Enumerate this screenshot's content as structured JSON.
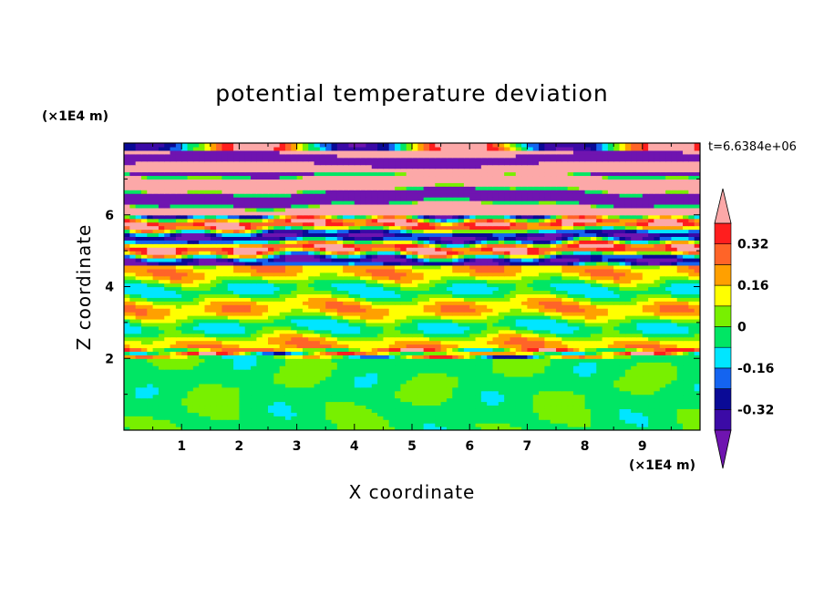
{
  "chart_data": {
    "type": "heatmap",
    "title": "potential temperature deviation",
    "xlabel": "X coordinate",
    "ylabel": "Z coordinate",
    "x_unit": "(×1E4 m)",
    "y_unit": "(×1E4 m)",
    "timestamp": "t=6.6384e+06",
    "xlim": [
      0,
      10
    ],
    "ylim": [
      0,
      8
    ],
    "xticks": [
      1,
      2,
      3,
      4,
      5,
      6,
      7,
      8,
      9
    ],
    "yticks": [
      2,
      4,
      6
    ],
    "colorbar": {
      "levels": [
        -0.4,
        -0.32,
        -0.24,
        -0.16,
        -0.08,
        0,
        0.08,
        0.16,
        0.24,
        0.32,
        0.4
      ],
      "labels": [
        "0.32",
        "0.16",
        "0",
        "-0.16",
        "-0.32"
      ],
      "label_values": [
        0.32,
        0.16,
        0,
        -0.16,
        -0.32
      ],
      "colors": [
        "#3b0aa6",
        "#0a0a96",
        "#1464f0",
        "#00e6ff",
        "#00e664",
        "#78f000",
        "#ffff00",
        "#ffa000",
        "#ff6428",
        "#ff1e1e"
      ],
      "under_color": "#6f14b0",
      "over_color": "#fca8a8"
    },
    "bands": [
      {
        "z_range": [
          7.2,
          8.0
        ],
        "dominant": "over",
        "description_level": 0.45
      },
      {
        "z_range": [
          6.0,
          7.2
        ],
        "dominant": "under",
        "description_level": -0.45
      },
      {
        "z_range": [
          4.6,
          6.0
        ],
        "dominant": "mixed",
        "description_level": 0.0
      },
      {
        "z_range": [
          2.0,
          4.6
        ],
        "dominant": "green",
        "description_level": 0.04
      },
      {
        "z_range": [
          0.0,
          2.0
        ],
        "dominant": "green",
        "description_level": -0.02
      }
    ]
  }
}
